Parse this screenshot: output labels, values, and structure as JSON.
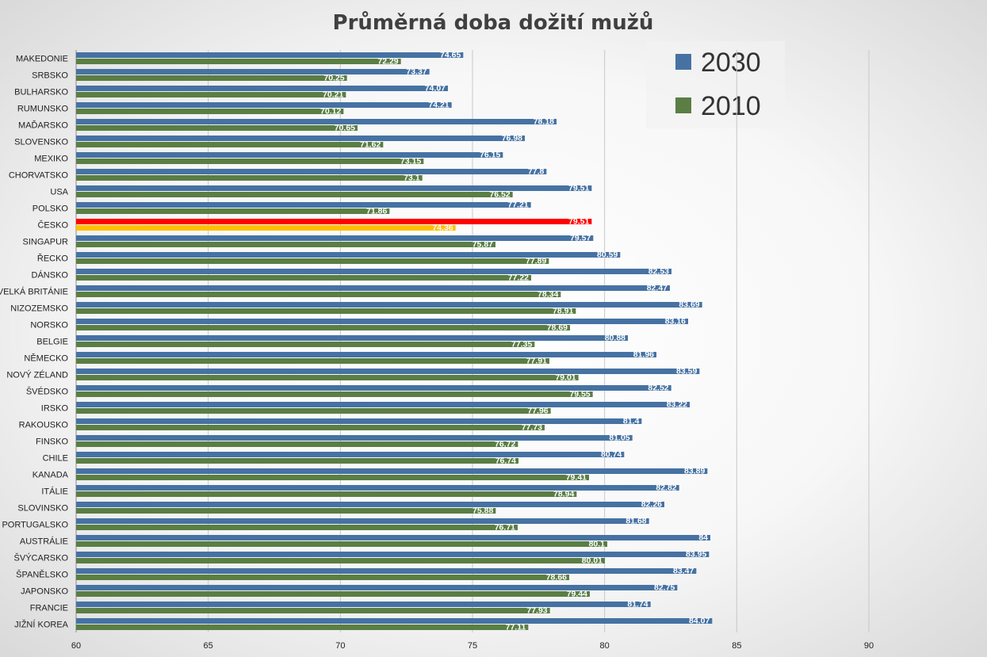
{
  "chart_data": {
    "type": "bar",
    "orientation": "horizontal",
    "title": "Průměrná doba dožití mužů",
    "xlim": [
      60,
      90
    ],
    "xticks": [
      "60",
      "65",
      "70",
      "75",
      "80",
      "85",
      "90"
    ],
    "grid": true,
    "legend_position": "top-right",
    "categories": [
      "MAKEDONIE",
      "SRBSKO",
      "BULHARSKO",
      "RUMUNSKO",
      "MAĎARSKO",
      "SLOVENSKO",
      "MEXIKO",
      "CHORVATSKO",
      "USA",
      "POLSKO",
      "ČESKO",
      "SINGAPUR",
      "ŘECKO",
      "DÁNSKO",
      "VELKÁ BRITÁNIE",
      "NIZOZEMSKO",
      "NORSKO",
      "BELGIE",
      "NĚMECKO",
      "NOVÝ ZÉLAND",
      "ŠVÉDSKO",
      "IRSKO",
      "RAKOUSKO",
      "FINSKO",
      "CHILE",
      "KANADA",
      "ITÁLIE",
      "SLOVINSKO",
      "PORTUGALSKO",
      "AUSTRÁLIE",
      "ŠVÝCARSKO",
      "ŠPANĚLSKO",
      "JAPONSKO",
      "FRANCIE",
      "JIŽNÍ KOREA"
    ],
    "series": [
      {
        "name": "2030",
        "color": "#4672a3",
        "labels": [
          "74.65",
          "73.37",
          "74.07",
          "74.21",
          "78.18",
          "76.98",
          "76.15",
          "77.8",
          "79.51",
          "77.21",
          "79.51",
          "79.57",
          "80.59",
          "82.53",
          "82.47",
          "83.69",
          "83.16",
          "80.88",
          "81.96",
          "83.59",
          "82.52",
          "83.22",
          "81.4",
          "81.05",
          "80.74",
          "83.89",
          "82.82",
          "82.26",
          "81.68",
          "84",
          "83.95",
          "83.47",
          "82.75",
          "81.74",
          "84.07"
        ]
      },
      {
        "name": "2010",
        "color": "#5a7e44",
        "labels": [
          "72.29",
          "70.25",
          "70.21",
          "70.12",
          "70.65",
          "71.62",
          "73.15",
          "73.1",
          "76.52",
          "71.86",
          "74.36",
          "75.87",
          "77.89",
          "77.22",
          "78.34",
          "78.91",
          "78.69",
          "77.35",
          "77.91",
          "79.01",
          "79.55",
          "77.96",
          "77.73",
          "76.72",
          "76.74",
          "79.41",
          "78.94",
          "75.88",
          "76.71",
          "80.1",
          "80.01",
          "78.66",
          "79.44",
          "77.93",
          "77.11"
        ]
      }
    ],
    "highlight": {
      "category": "ČESKO",
      "colors": {
        "2030": "#ff0000",
        "2010": "#ffc000"
      }
    }
  }
}
